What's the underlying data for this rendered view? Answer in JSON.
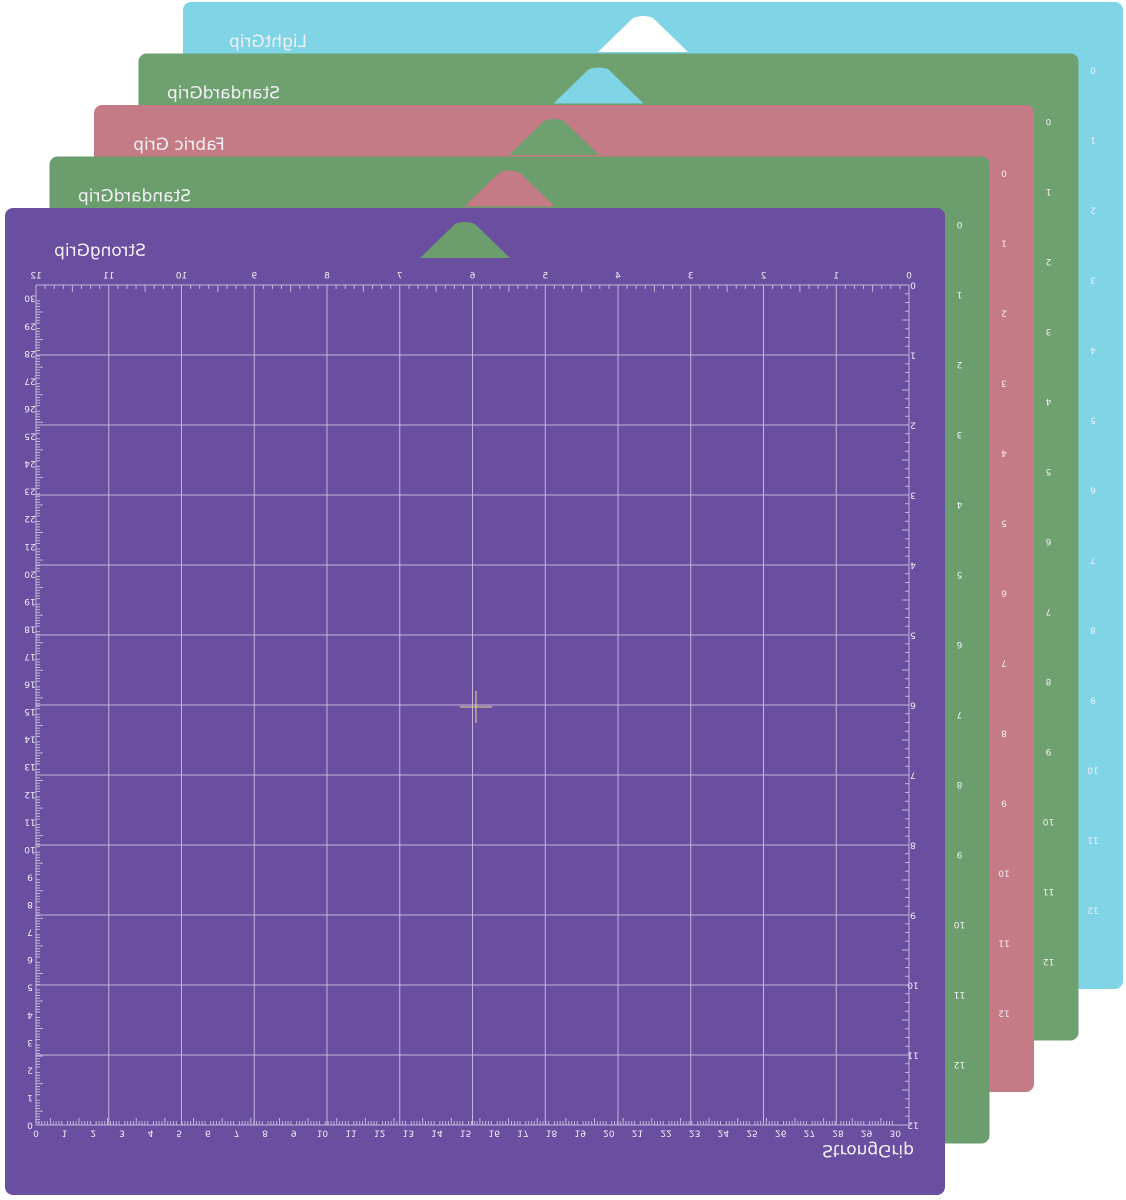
{
  "mats": [
    {
      "label": "LightGrip",
      "right_ruler": [
        "0",
        "1",
        "2",
        "3",
        "4",
        "5",
        "6",
        "7",
        "8",
        "9",
        "10",
        "11",
        "12"
      ]
    },
    {
      "label": "StandardGrip",
      "right_ruler": [
        "0",
        "1",
        "2",
        "3",
        "4",
        "5",
        "6",
        "7",
        "8",
        "9",
        "10",
        "11",
        "12"
      ]
    },
    {
      "label": "Fabric Grip",
      "right_ruler": [
        "0",
        "1",
        "2",
        "3",
        "4",
        "5",
        "6",
        "7",
        "8",
        "9",
        "10",
        "11",
        "12"
      ]
    },
    {
      "label": "StandardGrip",
      "right_ruler": [
        "0",
        "1",
        "2",
        "3",
        "4",
        "5",
        "6",
        "7",
        "8",
        "9",
        "10",
        "11",
        "12"
      ]
    },
    {
      "label": "StrongGrip",
      "right_ruler": [
        "0",
        "1",
        "2",
        "3",
        "4",
        "5",
        "6",
        "7",
        "8",
        "9",
        "10",
        "11",
        "12"
      ]
    }
  ],
  "front": {
    "top_ruler": [
      "0",
      "1",
      "2",
      "3",
      "4",
      "5",
      "6",
      "7",
      "8",
      "9",
      "10",
      "11",
      "12"
    ],
    "left_ruler": [
      "0",
      "1",
      "2",
      "3",
      "4",
      "5",
      "6",
      "7",
      "8",
      "9",
      "10",
      "11",
      "12",
      "13",
      "14",
      "15",
      "16",
      "17",
      "18",
      "19",
      "20",
      "21",
      "22",
      "23",
      "24",
      "25",
      "26",
      "27",
      "28",
      "29",
      "30"
    ],
    "bottom_ruler": [
      "0",
      "1",
      "2",
      "3",
      "4",
      "5",
      "6",
      "7",
      "8",
      "9",
      "10",
      "11",
      "12",
      "13",
      "14",
      "15",
      "16",
      "17",
      "18",
      "19",
      "20",
      "21",
      "22",
      "23",
      "24",
      "25",
      "26",
      "27",
      "28",
      "29",
      "30"
    ],
    "bottom_label": "StrongGrip"
  }
}
